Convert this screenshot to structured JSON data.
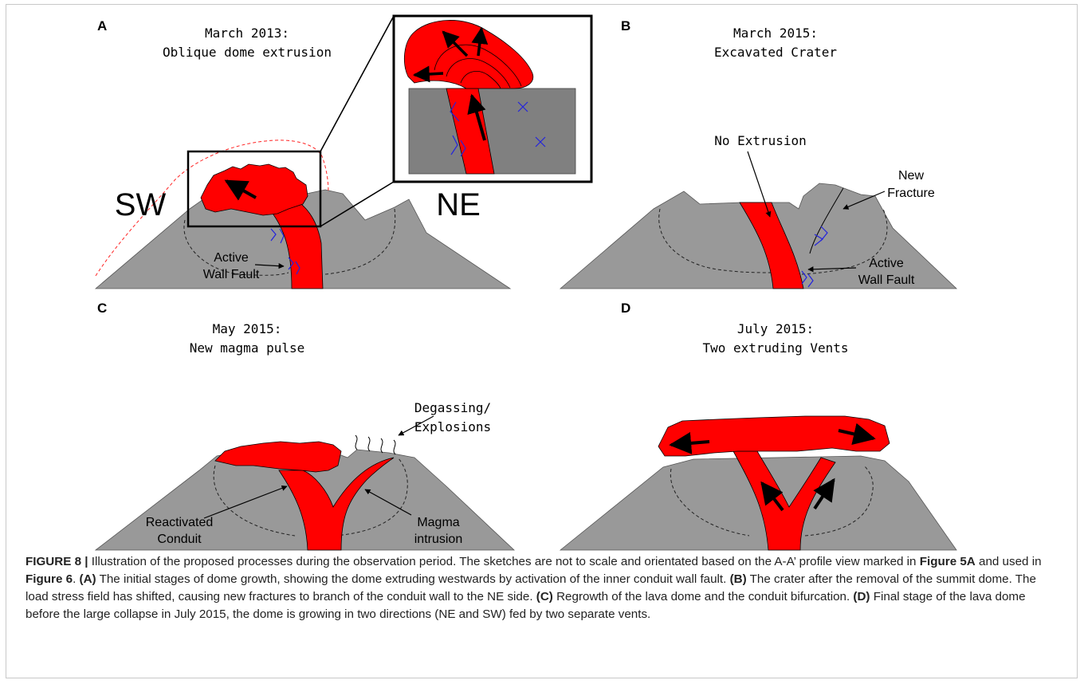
{
  "panels": {
    "a": {
      "letter": "A",
      "title_line1": "March 2013:",
      "title_line2": "Oblique dome extrusion",
      "dir_left": "SW",
      "dir_right": "NE",
      "label_fault_1": "Active",
      "label_fault_2": "Wall Fault"
    },
    "b": {
      "letter": "B",
      "title_line1": "March 2015:",
      "title_line2": "Excavated Crater",
      "label_no_extrusion": "No Extrusion",
      "label_fracture_1": "New",
      "label_fracture_2": "Fracture",
      "label_fault_1": "Active",
      "label_fault_2": "Wall Fault"
    },
    "c": {
      "letter": "C",
      "title_line1": "May 2015:",
      "title_line2": "New magma pulse",
      "label_degas_1": "Degassing/",
      "label_degas_2": "Explosions",
      "label_reactivated_1": "Reactivated",
      "label_reactivated_2": "Conduit",
      "label_intrusion_1": "Magma",
      "label_intrusion_2": "intrusion"
    },
    "d": {
      "letter": "D",
      "title_line1": "July 2015:",
      "title_line2": "Two extruding Vents"
    }
  },
  "colors": {
    "magma": "#ff0000",
    "rock": "#999999",
    "rock_dark": "#808080",
    "arrow": "#000000",
    "fault_mark": "#2222dd",
    "outline": "#ff2222"
  },
  "caption": {
    "label": "FIGURE 8 |",
    "s1": " Illustration of the proposed processes during the observation period. The sketches are not to scale and orientated based on the A-A’ profile view marked in ",
    "ref1": "Figure 5A",
    "s2": " and used in ",
    "ref2": "Figure 6",
    "s3": ". ",
    "tagA": "(A)",
    "textA": " The initial stages of dome growth, showing the dome extruding westwards by activation of the inner conduit wall fault. ",
    "tagB": "(B)",
    "textB": " The crater after the removal of the summit dome. The load stress field has shifted, causing new fractures to branch of the conduit wall to the NE side. ",
    "tagC": "(C)",
    "textC": " Regrowth of the lava dome and the conduit bifurcation. ",
    "tagD": "(D)",
    "textD": " Final stage of the lava dome before the large collapse in July 2015, the dome is growing in two directions (NE and SW) fed by two separate vents."
  }
}
